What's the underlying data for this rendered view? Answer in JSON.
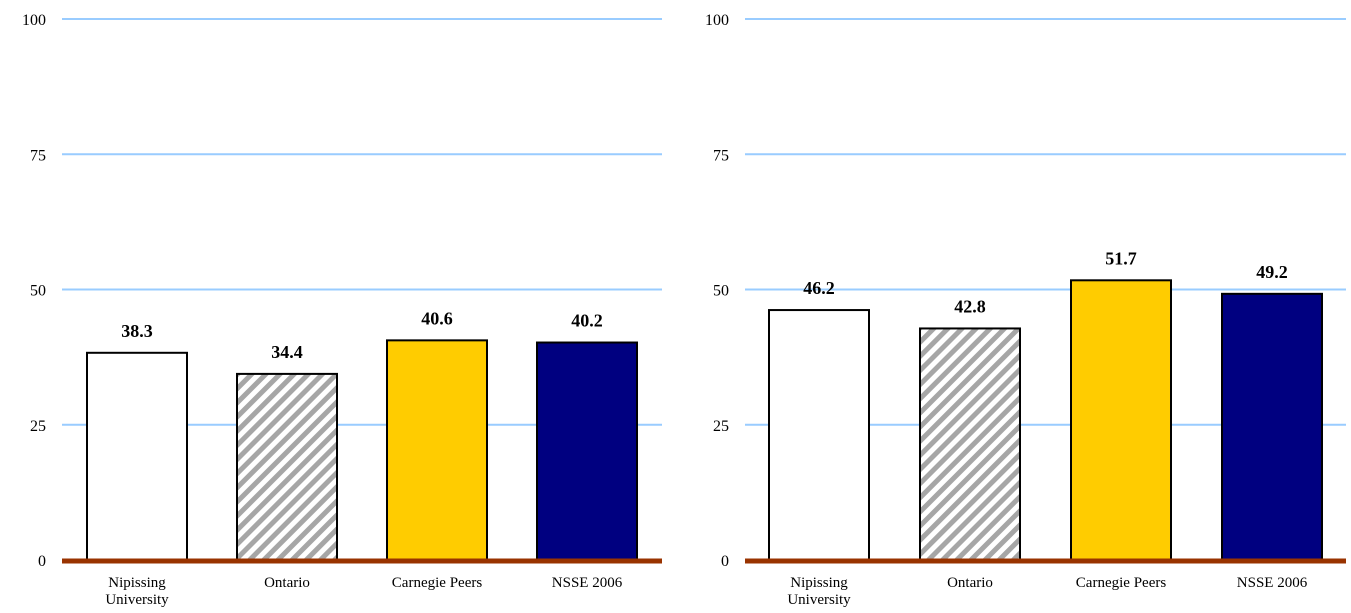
{
  "colors": {
    "gridline": "#99CCFF",
    "baseline": "#993300",
    "bar_edge": "#000000",
    "series_fills": [
      "#FFFFFF",
      "hatch-gray",
      "#FFCC00",
      "#000080"
    ]
  },
  "chart_data": [
    {
      "type": "bar",
      "categories": [
        "Nipissing University",
        "Ontario",
        "Carnegie Peers",
        "NSSE 2006"
      ],
      "category_lines": [
        [
          "Nipissing",
          "University"
        ],
        [
          "Ontario"
        ],
        [
          "Carnegie Peers"
        ],
        [
          "NSSE 2006"
        ]
      ],
      "values": [
        38.3,
        34.4,
        40.6,
        40.2
      ],
      "value_labels": [
        "38.3",
        "34.4",
        "40.6",
        "40.2"
      ],
      "ylim": [
        0,
        100
      ],
      "yticks": [
        0,
        25,
        50,
        75,
        100
      ],
      "grid": true,
      "title": "",
      "xlabel": "",
      "ylabel": ""
    },
    {
      "type": "bar",
      "categories": [
        "Nipissing University",
        "Ontario",
        "Carnegie Peers",
        "NSSE 2006"
      ],
      "category_lines": [
        [
          "Nipissing",
          "University"
        ],
        [
          "Ontario"
        ],
        [
          "Carnegie Peers"
        ],
        [
          "NSSE 2006"
        ]
      ],
      "values": [
        46.2,
        42.8,
        51.7,
        49.2
      ],
      "value_labels": [
        "46.2",
        "42.8",
        "51.7",
        "49.2"
      ],
      "ylim": [
        0,
        100
      ],
      "yticks": [
        0,
        25,
        50,
        75,
        100
      ],
      "grid": true,
      "title": "",
      "xlabel": "",
      "ylabel": ""
    }
  ]
}
